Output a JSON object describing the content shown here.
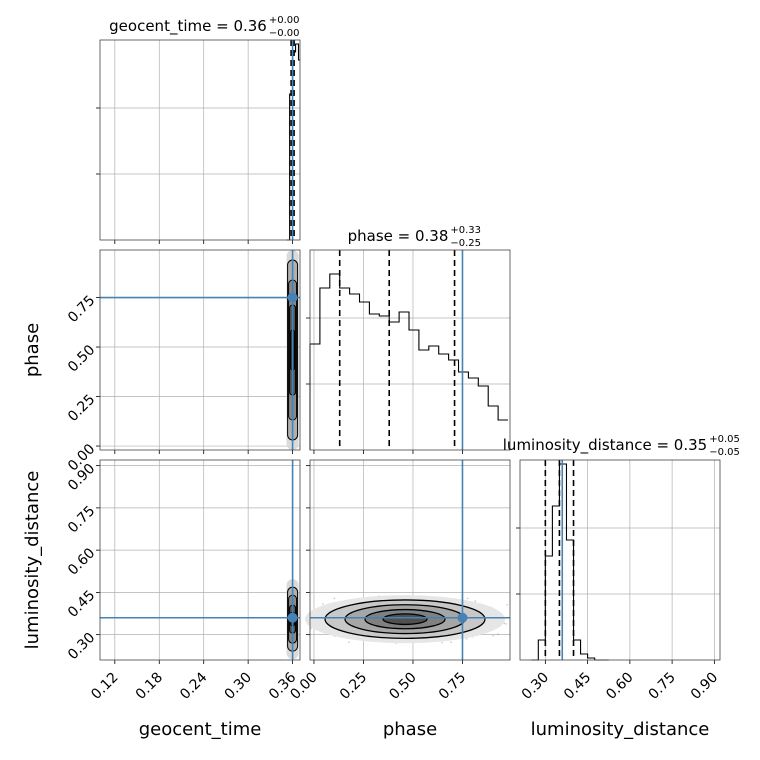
{
  "chart_data": {
    "type": "corner",
    "parameters": [
      "geocent_time",
      "phase",
      "luminosity_distance"
    ],
    "truth": {
      "geocent_time": 0.36,
      "phase": 0.75,
      "luminosity_distance": 0.36
    },
    "colors": {
      "truth": "#4682b4",
      "hist": "#000000",
      "grid": "#b0b0b0"
    },
    "titles": [
      {
        "name": "geocent_time",
        "text": "geocent_time = 0.36",
        "plus": "+0.00",
        "minus": "−0.00"
      },
      {
        "name": "phase",
        "text": "phase = 0.38",
        "plus": "+0.33",
        "minus": "−0.25"
      },
      {
        "name": "luminosity_distance",
        "text": "luminosity_distance = 0.35",
        "plus": "+0.05",
        "minus": "−0.05"
      }
    ],
    "axes_labels": {
      "x": [
        "geocent_time",
        "phase",
        "luminosity_distance"
      ],
      "y": [
        "phase",
        "luminosity_distance"
      ]
    },
    "ticks": {
      "geocent_time": {
        "values": [
          0.12,
          0.18,
          0.24,
          0.3,
          0.36
        ],
        "labels": [
          "0.12",
          "0.18",
          "0.24",
          "0.30",
          "0.36"
        ],
        "range": [
          0.1,
          0.37
        ]
      },
      "phase": {
        "values": [
          0.0,
          0.25,
          0.5,
          0.75
        ],
        "labels": [
          "0.00",
          "0.25",
          "0.50",
          "0.75"
        ],
        "range": [
          -0.02,
          0.99
        ]
      },
      "luminosity_distance": {
        "values": [
          0.3,
          0.45,
          0.6,
          0.75,
          0.9
        ],
        "labels": [
          "0.30",
          "0.45",
          "0.60",
          "0.75",
          "0.90"
        ],
        "range": [
          0.21,
          0.92
        ]
      }
    },
    "quantiles": {
      "geocent_time": [
        0.358,
        0.36,
        0.362
      ],
      "phase": [
        0.13,
        0.38,
        0.71
      ],
      "luminosity_distance": [
        0.3,
        0.35,
        0.4
      ]
    },
    "hist_phase": {
      "bin_edges": [
        -0.02,
        0.03,
        0.08,
        0.13,
        0.18,
        0.23,
        0.28,
        0.33,
        0.38,
        0.43,
        0.48,
        0.53,
        0.58,
        0.63,
        0.68,
        0.73,
        0.78,
        0.83,
        0.88,
        0.93,
        0.98
      ],
      "counts": [
        0.53,
        0.81,
        0.88,
        0.81,
        0.78,
        0.74,
        0.68,
        0.67,
        0.64,
        0.69,
        0.6,
        0.5,
        0.52,
        0.48,
        0.45,
        0.39,
        0.36,
        0.32,
        0.22,
        0.15
      ],
      "ymax": 1.0
    },
    "hist_geocent": {
      "bin_edges": [
        0.352,
        0.356,
        0.36,
        0.364,
        0.368,
        0.372
      ],
      "counts": [
        0.0,
        0.73,
        0.94,
        0.98,
        0.9
      ],
      "ymax": 1.0
    },
    "hist_distance": {
      "bin_edges": [
        0.25,
        0.275,
        0.3,
        0.325,
        0.35,
        0.375,
        0.4,
        0.425,
        0.45,
        0.475,
        0.5,
        0.525
      ],
      "counts": [
        0.0,
        0.1,
        0.52,
        0.77,
        0.98,
        0.6,
        0.1,
        0.03,
        0.01,
        0.0,
        0.0
      ],
      "ymax": 1.0
    }
  }
}
